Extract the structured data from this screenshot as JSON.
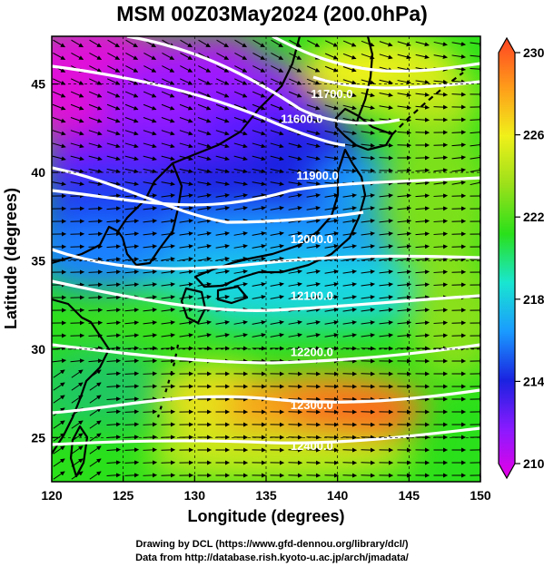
{
  "title": "MSM 00Z03May2024 (200.0hPa)",
  "x_axis": {
    "label": "Longitude (degrees)",
    "range": [
      120,
      150
    ],
    "ticks": [
      {
        "value": 120,
        "label": "120"
      },
      {
        "value": 125,
        "label": "125"
      },
      {
        "value": 130,
        "label": "130"
      },
      {
        "value": 135,
        "label": "135"
      },
      {
        "value": 140,
        "label": "140"
      },
      {
        "value": 145,
        "label": "145"
      },
      {
        "value": 150,
        "label": "150"
      }
    ]
  },
  "y_axis": {
    "label": "Latitude  (degrees)",
    "range": [
      22.5,
      47.7
    ],
    "ticks": [
      {
        "value": 25,
        "label": "25"
      },
      {
        "value": 30,
        "label": "30"
      },
      {
        "value": 35,
        "label": "35"
      },
      {
        "value": 40,
        "label": "40"
      },
      {
        "value": 45,
        "label": "45"
      }
    ]
  },
  "colorbar": {
    "min": 210,
    "max": 230,
    "ticks": [
      {
        "value": 210,
        "label": "210"
      },
      {
        "value": 214,
        "label": "214"
      },
      {
        "value": 218,
        "label": "218"
      },
      {
        "value": 222,
        "label": "222"
      },
      {
        "value": 226,
        "label": "226"
      },
      {
        "value": 230,
        "label": "230"
      }
    ],
    "colors": [
      "#e600e6",
      "#8a1aff",
      "#1a22e0",
      "#1a9bff",
      "#19e6d0",
      "#2ae01a",
      "#9be01a",
      "#f0f01a",
      "#ff9b1a",
      "#ff4422"
    ]
  },
  "height_contours": [
    {
      "label": "11600.0",
      "label_lon": 137.5,
      "label_lat": 42.8
    },
    {
      "label": "11700.0",
      "label_lon": 139.6,
      "label_lat": 44.2
    },
    {
      "label": "11900.0",
      "label_lon": 138.6,
      "label_lat": 39.6
    },
    {
      "label": "12000.0",
      "label_lon": 138.2,
      "label_lat": 36.0
    },
    {
      "label": "12100.0",
      "label_lon": 138.2,
      "label_lat": 32.8
    },
    {
      "label": "12200.0",
      "label_lon": 138.2,
      "label_lat": 29.6
    },
    {
      "label": "12300.0",
      "label_lon": 138.2,
      "label_lat": 26.6
    },
    {
      "label": "12400.0",
      "label_lon": 138.2,
      "label_lat": 24.3
    }
  ],
  "credits": {
    "line1": "Drawing by DCL (https://www.gfd-dennou.org/library/dcl/)",
    "line2": "Data from http://database.rish.kyoto-u.ac.jp/arch/jmadata/"
  }
}
